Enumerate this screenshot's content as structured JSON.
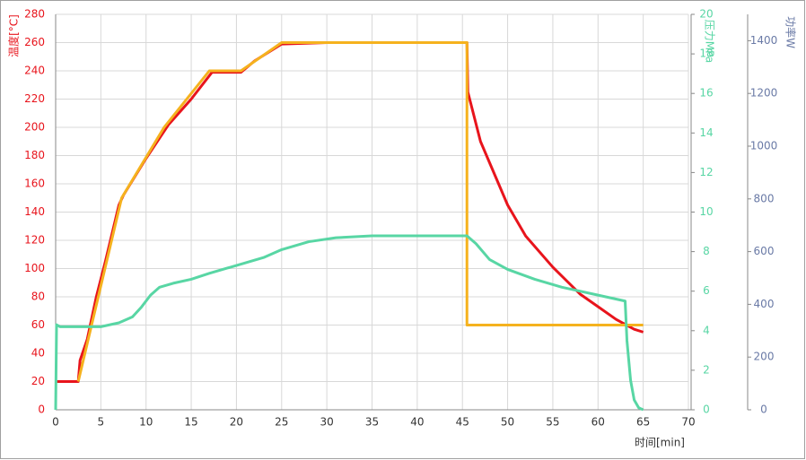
{
  "chart_data": {
    "type": "line",
    "xlabel": "时间[min]",
    "ylabel": "温度[°C]",
    "y2label": "压力MPa",
    "y3label": "功率W",
    "xlim": [
      0,
      70
    ],
    "xticks": [
      0,
      5,
      10,
      15,
      20,
      25,
      30,
      35,
      40,
      45,
      50,
      55,
      60,
      65,
      70
    ],
    "ylim": [
      0,
      280
    ],
    "yticks": [
      0,
      20,
      40,
      60,
      80,
      100,
      120,
      140,
      160,
      180,
      200,
      220,
      240,
      260,
      280
    ],
    "y2lim": [
      0,
      20
    ],
    "y2ticks": [
      0,
      2,
      4,
      6,
      8,
      10,
      12,
      14,
      16,
      18,
      20
    ],
    "y3lim": [
      0,
      1500
    ],
    "y3ticks": [
      0,
      200,
      400,
      600,
      800,
      1000,
      1200,
      1400
    ],
    "grid": true,
    "series": [
      {
        "color": "#e8141c",
        "x": [
          0,
          2.5,
          2.7,
          3.5,
          4.5,
          5.5,
          7,
          7.5,
          10,
          12.5,
          15,
          17.3,
          20.5,
          22,
          25,
          30,
          35,
          40,
          45.5,
          45.6,
          47,
          50,
          52,
          55,
          58,
          60,
          62,
          64,
          65
        ],
        "values": [
          20,
          20,
          35,
          50,
          80,
          105,
          145,
          152,
          178,
          202,
          220,
          239,
          239,
          247,
          259,
          260,
          260,
          260,
          260,
          225,
          190,
          145,
          123,
          101,
          82,
          73,
          64,
          57,
          55
        ]
      },
      {
        "color": "#f5b21e",
        "x": [
          2.5,
          7.3,
          12,
          17,
          20.5,
          25,
          45.5,
          45.5,
          65
        ],
        "values": [
          20,
          150,
          200,
          240,
          240,
          260,
          260,
          60,
          60
        ]
      },
      {
        "color": "#58d6a4",
        "axis": "y2",
        "x": [
          0,
          0.1,
          0.5,
          5,
          7,
          8.5,
          9.5,
          10.5,
          11.5,
          13,
          15,
          17,
          20,
          23,
          25,
          28,
          31,
          35,
          40,
          45,
          45.5,
          46.5,
          48,
          50,
          53,
          56,
          60,
          63,
          63.2,
          63.6,
          64,
          64.5,
          65
        ],
        "values": [
          0,
          4.3,
          4.2,
          4.2,
          4.4,
          4.7,
          5.2,
          5.8,
          6.2,
          6.4,
          6.6,
          6.9,
          7.3,
          7.7,
          8.1,
          8.5,
          8.7,
          8.8,
          8.8,
          8.8,
          8.8,
          8.4,
          7.6,
          7.1,
          6.6,
          6.2,
          5.8,
          5.5,
          3.5,
          1.5,
          0.5,
          0.1,
          0
        ]
      }
    ]
  }
}
